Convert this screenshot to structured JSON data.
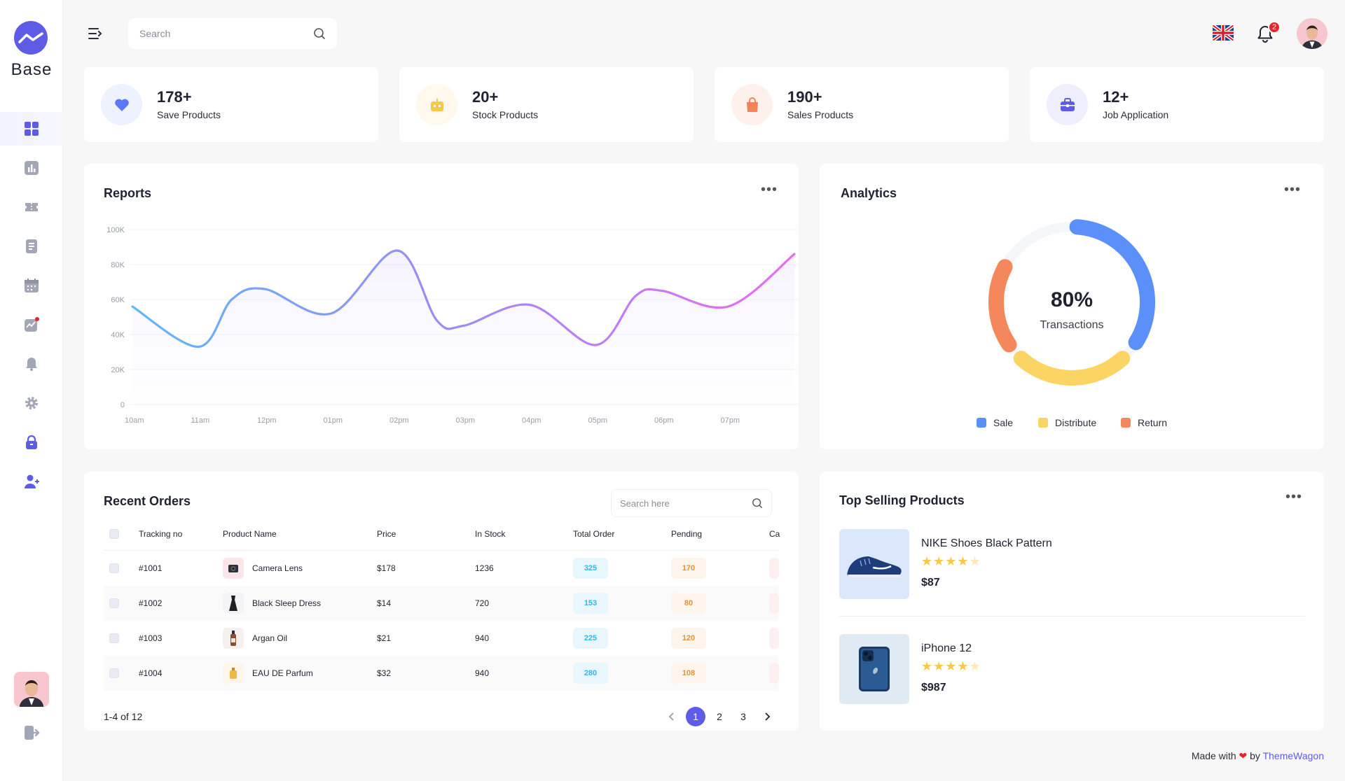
{
  "brand": {
    "name": "Base"
  },
  "header": {
    "search_placeholder": "Search",
    "notification_count": "2"
  },
  "stats": [
    {
      "value": "178+",
      "label": "Save Products",
      "icon": "heart-icon",
      "color": "#5b78f6"
    },
    {
      "value": "20+",
      "label": "Stock Products",
      "icon": "robot-icon",
      "color": "#f7c94b"
    },
    {
      "value": "190+",
      "label": "Sales Products",
      "icon": "shopping-bag-icon",
      "color": "#f3815a"
    },
    {
      "value": "12+",
      "label": "Job Application",
      "icon": "briefcase-icon",
      "color": "#5e5ce6"
    }
  ],
  "reports": {
    "title": "Reports"
  },
  "chart_data": {
    "type": "line",
    "title": "Reports",
    "x": [
      "10am",
      "11am",
      "12pm",
      "01pm",
      "02pm",
      "03pm",
      "04pm",
      "05pm",
      "06pm",
      "07pm"
    ],
    "y_ticks": [
      "100K",
      "80K",
      "60K",
      "40K",
      "20K",
      "0"
    ],
    "ylim": [
      0,
      100000
    ],
    "series": [
      {
        "points": [
          [
            0.0,
            56000
          ],
          [
            1.0,
            33000
          ],
          [
            1.5,
            60000
          ],
          [
            2.0,
            66000
          ],
          [
            3.0,
            52000
          ],
          [
            4.0,
            88000
          ],
          [
            4.6,
            48000
          ],
          [
            5.0,
            45000
          ],
          [
            6.0,
            57000
          ],
          [
            7.0,
            34000
          ],
          [
            7.6,
            62000
          ],
          [
            8.0,
            65000
          ],
          [
            9.0,
            56000
          ],
          [
            10.0,
            86000
          ]
        ]
      }
    ],
    "grid": true
  },
  "analytics": {
    "title": "Analytics",
    "center_value": "80%",
    "center_label": "Transactions",
    "legend": [
      {
        "label": "Sale",
        "color": "#5b8ff9"
      },
      {
        "label": "Distribute",
        "color": "#fcd463"
      },
      {
        "label": "Return",
        "color": "#f4875c"
      }
    ]
  },
  "orders": {
    "title": "Recent Orders",
    "search_placeholder": "Search here",
    "columns": [
      "Tracking no",
      "Product Name",
      "Price",
      "In Stock",
      "Total Order",
      "Pending",
      "Ca"
    ],
    "rows": [
      {
        "tracking": "#1001",
        "product": "Camera Lens",
        "price": "$178",
        "stock": "1236",
        "total": "325",
        "pending": "170",
        "thumb": "camera-lens-icon"
      },
      {
        "tracking": "#1002",
        "product": "Black Sleep Dress",
        "price": "$14",
        "stock": "720",
        "total": "153",
        "pending": "80",
        "thumb": "dress-icon"
      },
      {
        "tracking": "#1003",
        "product": "Argan Oil",
        "price": "$21",
        "stock": "940",
        "total": "225",
        "pending": "120",
        "thumb": "oil-bottle-icon"
      },
      {
        "tracking": "#1004",
        "product": "EAU DE Parfum",
        "price": "$32",
        "stock": "940",
        "total": "280",
        "pending": "108",
        "thumb": "perfume-icon"
      }
    ],
    "range_text": "1-4 of 12",
    "pages": [
      "1",
      "2",
      "3"
    ]
  },
  "top_selling": {
    "title": "Top Selling Products",
    "products": [
      {
        "name": "NIKE Shoes Black Pattern",
        "rating": 4,
        "price": "$87",
        "image": "sneaker-icon",
        "bg": "#dbe8fb"
      },
      {
        "name": "iPhone 12",
        "rating": 4,
        "price": "$987",
        "image": "smartphone-icon",
        "bg": "#dfeaf3"
      }
    ]
  },
  "footer": {
    "prefix": "Made with",
    "middle": "by",
    "link": "ThemeWagon"
  }
}
